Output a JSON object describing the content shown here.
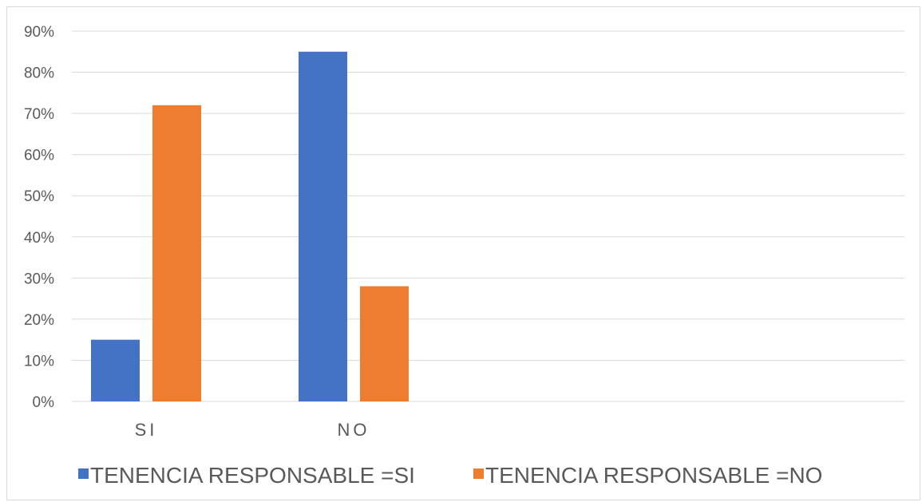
{
  "chart_data": {
    "type": "bar",
    "title": "",
    "xlabel": "",
    "ylabel": "",
    "categories": [
      "SI",
      "NO"
    ],
    "series": [
      {
        "name": "TENENCIA RESPONSABLE =SI",
        "color": "#4472C4",
        "values": [
          15,
          85
        ]
      },
      {
        "name": "TENENCIA RESPONSABLE =NO",
        "color": "#ED7D31",
        "values": [
          72,
          28
        ]
      }
    ],
    "ylim": [
      0,
      90
    ],
    "yticks": [
      "0%",
      "10%",
      "20%",
      "30%",
      "40%",
      "50%",
      "60%",
      "70%",
      "80%",
      "90%"
    ],
    "grid": true,
    "legend_position": "bottom"
  }
}
